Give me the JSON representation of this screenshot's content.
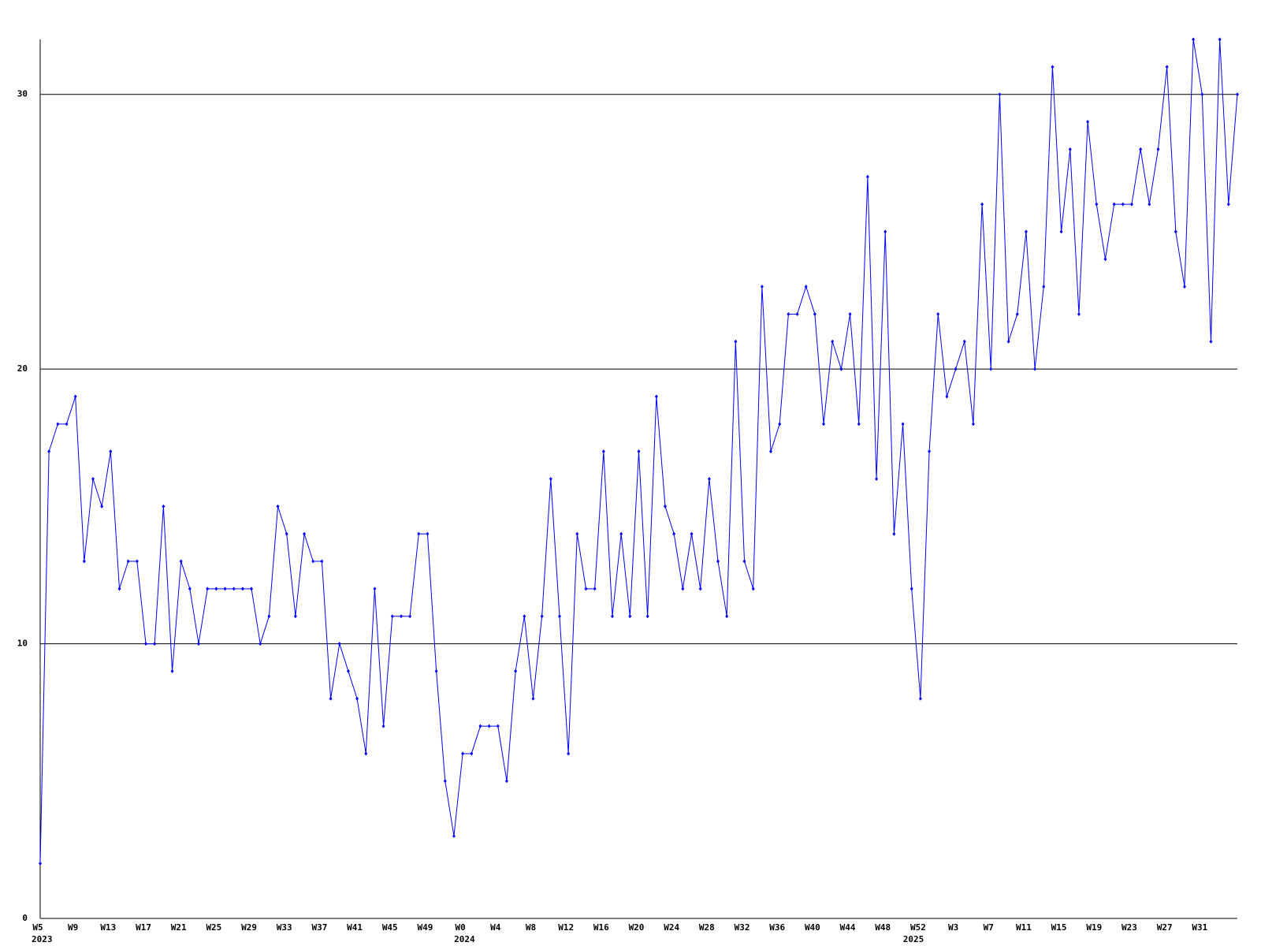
{
  "chart_data": {
    "type": "line",
    "categories": [
      "W5",
      null,
      null,
      null,
      "W9",
      null,
      null,
      null,
      "W13",
      null,
      null,
      null,
      "W17",
      null,
      null,
      null,
      "W21",
      null,
      null,
      null,
      "W25",
      null,
      null,
      null,
      "W29",
      null,
      null,
      null,
      "W33",
      null,
      null,
      null,
      "W37",
      null,
      null,
      null,
      "W41",
      null,
      null,
      null,
      "W45",
      null,
      null,
      null,
      "W49",
      null,
      null,
      null,
      "W0",
      null,
      null,
      null,
      "W4",
      null,
      null,
      null,
      "W8",
      null,
      null,
      null,
      "W12",
      null,
      null,
      null,
      "W16",
      null,
      null,
      null,
      "W20",
      null,
      null,
      null,
      "W24",
      null,
      null,
      null,
      "W28",
      null,
      null,
      null,
      "W32",
      null,
      null,
      null,
      "W36",
      null,
      null,
      null,
      "W40",
      null,
      null,
      null,
      "W44",
      null,
      null,
      null,
      "W48",
      null,
      null,
      null,
      "W52",
      null,
      null,
      null,
      "W3",
      null,
      null,
      null,
      "W7",
      null,
      null,
      null,
      "W11",
      null,
      null,
      null,
      "W15",
      null,
      null,
      null,
      "W19",
      null,
      null,
      null,
      "W23",
      null,
      null,
      null,
      "W27",
      null,
      null,
      null,
      "W31",
      null,
      null,
      null,
      null
    ],
    "year_labels": [
      "2023",
      null,
      null,
      null,
      null,
      null,
      null,
      null,
      null,
      null,
      null,
      null,
      null,
      null,
      null,
      null,
      null,
      null,
      null,
      null,
      null,
      null,
      null,
      null,
      null,
      null,
      null,
      null,
      null,
      null,
      null,
      null,
      null,
      null,
      null,
      null,
      null,
      null,
      null,
      null,
      null,
      null,
      null,
      null,
      null,
      null,
      null,
      null,
      "2024",
      null,
      null,
      null,
      null,
      null,
      null,
      null,
      null,
      null,
      null,
      null,
      null,
      null,
      null,
      null,
      null,
      null,
      null,
      null,
      null,
      null,
      null,
      null,
      null,
      null,
      null,
      null,
      null,
      null,
      null,
      null,
      null,
      null,
      null,
      null,
      null,
      null,
      null,
      null,
      null,
      null,
      null,
      null,
      null,
      null,
      null,
      null,
      null,
      null,
      null,
      "2025",
      null,
      null,
      null,
      null,
      null,
      null,
      null,
      null,
      null,
      null,
      null,
      null,
      null,
      null,
      null,
      null,
      null,
      null,
      null,
      null,
      null,
      null,
      null,
      null,
      null,
      null,
      null,
      null,
      null,
      null,
      null,
      null,
      null,
      null
    ],
    "series": [
      {
        "color": "#0000ff",
        "values": [
          2,
          17,
          18,
          18,
          19,
          13,
          16,
          15,
          17,
          12,
          13,
          13,
          10,
          10,
          15,
          9,
          13,
          12,
          10,
          12,
          12,
          12,
          12,
          12,
          12,
          10,
          11,
          15,
          14,
          11,
          14,
          13,
          13,
          8,
          10,
          9,
          8,
          6,
          12,
          7,
          11,
          11,
          11,
          14,
          14,
          9,
          5,
          3,
          6,
          6,
          7,
          7,
          7,
          5,
          9,
          11,
          8,
          11,
          16,
          11,
          6,
          14,
          12,
          12,
          17,
          11,
          14,
          11,
          17,
          11,
          19,
          15,
          14,
          12,
          14,
          12,
          16,
          13,
          11,
          21,
          13,
          12,
          23,
          17,
          18,
          22,
          22,
          23,
          22,
          18,
          21,
          20,
          22,
          18,
          27,
          16,
          25,
          14,
          18,
          12,
          8,
          17,
          22,
          19,
          20,
          21,
          18,
          26,
          20,
          30,
          21,
          22,
          25,
          20,
          23,
          31,
          25,
          28,
          22,
          29,
          26,
          24,
          26,
          26,
          26,
          28,
          26,
          28,
          31,
          25,
          23,
          32,
          30,
          21,
          32,
          26,
          30
        ]
      }
    ],
    "ylim": [
      0,
      32
    ],
    "yticks": [
      0,
      10,
      20,
      30
    ],
    "grid": true
  }
}
